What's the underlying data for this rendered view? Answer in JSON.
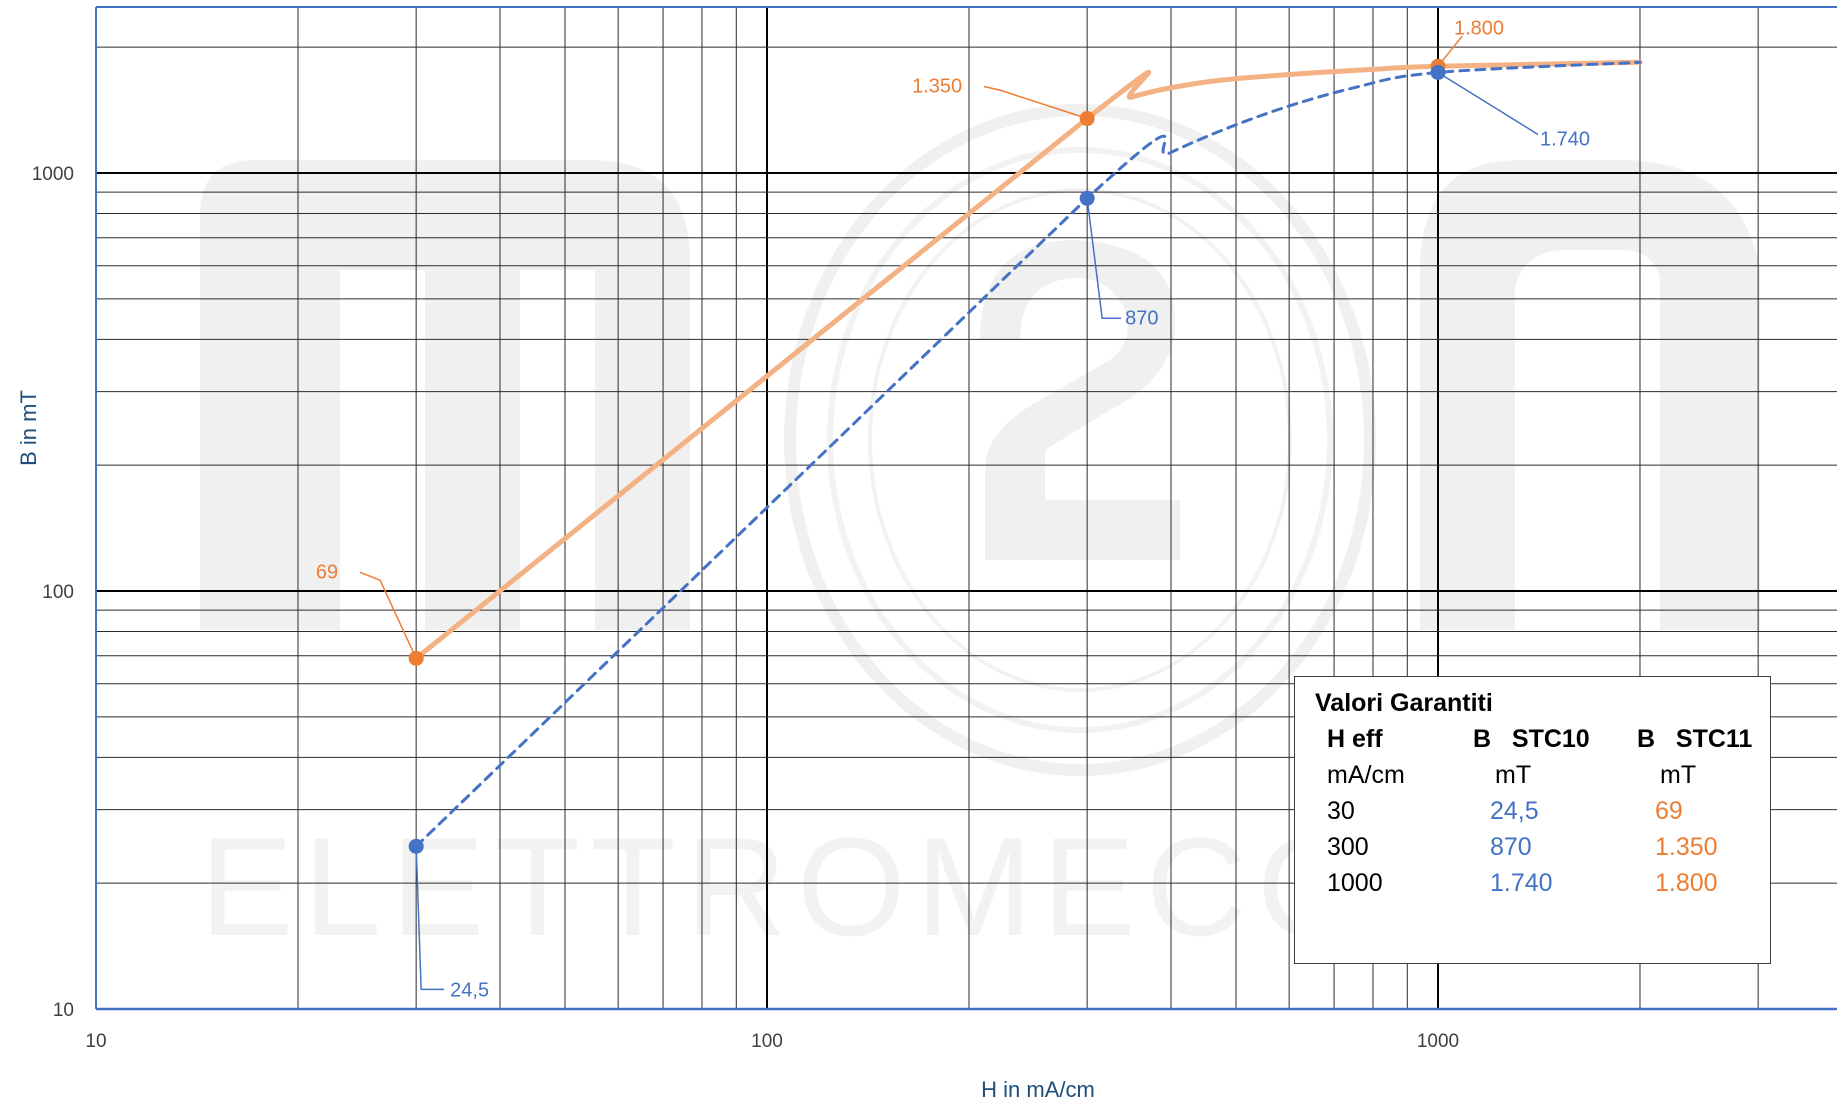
{
  "chart_data": {
    "type": "line",
    "x_scale": "log",
    "y_scale": "log",
    "xlim": [
      10,
      4000
    ],
    "ylim": [
      10,
      2500
    ],
    "xlabel": "H in mA/cm",
    "ylabel": "B in mT",
    "x_ticks": [
      10,
      100,
      1000
    ],
    "x_tick_labels": [
      "10",
      "100",
      "1000"
    ],
    "y_ticks": [
      10,
      100,
      1000
    ],
    "y_tick_labels": [
      "10",
      "100",
      "1000"
    ],
    "grid": true,
    "series": [
      {
        "color": "#f4b183",
        "style": "solid",
        "curve": [
          {
            "x": 30,
            "y": 69
          },
          {
            "x": 300,
            "y": 1350
          },
          {
            "x": 350,
            "y": 1520
          },
          {
            "x": 450,
            "y": 1650
          },
          {
            "x": 600,
            "y": 1720
          },
          {
            "x": 800,
            "y": 1770
          },
          {
            "x": 1000,
            "y": 1800
          },
          {
            "x": 2000,
            "y": 1840
          }
        ],
        "markers": [
          {
            "x": 30,
            "y": 69,
            "label": "69"
          },
          {
            "x": 300,
            "y": 1350,
            "label": "1.350"
          },
          {
            "x": 1000,
            "y": 1800,
            "label": "1.800"
          }
        ],
        "marker_color": "#ed7d31"
      },
      {
        "color": "#4472c4",
        "style": "dashed",
        "curve": [
          {
            "x": 30,
            "y": 24.5
          },
          {
            "x": 300,
            "y": 870
          },
          {
            "x": 400,
            "y": 1120
          },
          {
            "x": 550,
            "y": 1380
          },
          {
            "x": 750,
            "y": 1600
          },
          {
            "x": 1000,
            "y": 1740
          },
          {
            "x": 2000,
            "y": 1840
          }
        ],
        "markers": [
          {
            "x": 30,
            "y": 24.5,
            "label": "24,5"
          },
          {
            "x": 300,
            "y": 870,
            "label": "870"
          },
          {
            "x": 1000,
            "y": 1740,
            "label": "1.740"
          }
        ],
        "marker_color": "#4472c4"
      }
    ],
    "watermark": {
      "logo_text": "m2A",
      "text": "ELETTROMECC"
    }
  },
  "legend_table": {
    "title": "Valori Garantiti",
    "headers": [
      "H eff",
      "B   STC10",
      "B   STC11"
    ],
    "units": [
      "mA/cm",
      "mT",
      "mT"
    ],
    "rows": [
      [
        "30",
        "24,5",
        "69"
      ],
      [
        "300",
        "870",
        "1.350"
      ],
      [
        "1000",
        "1.740",
        "1.800"
      ]
    ]
  }
}
